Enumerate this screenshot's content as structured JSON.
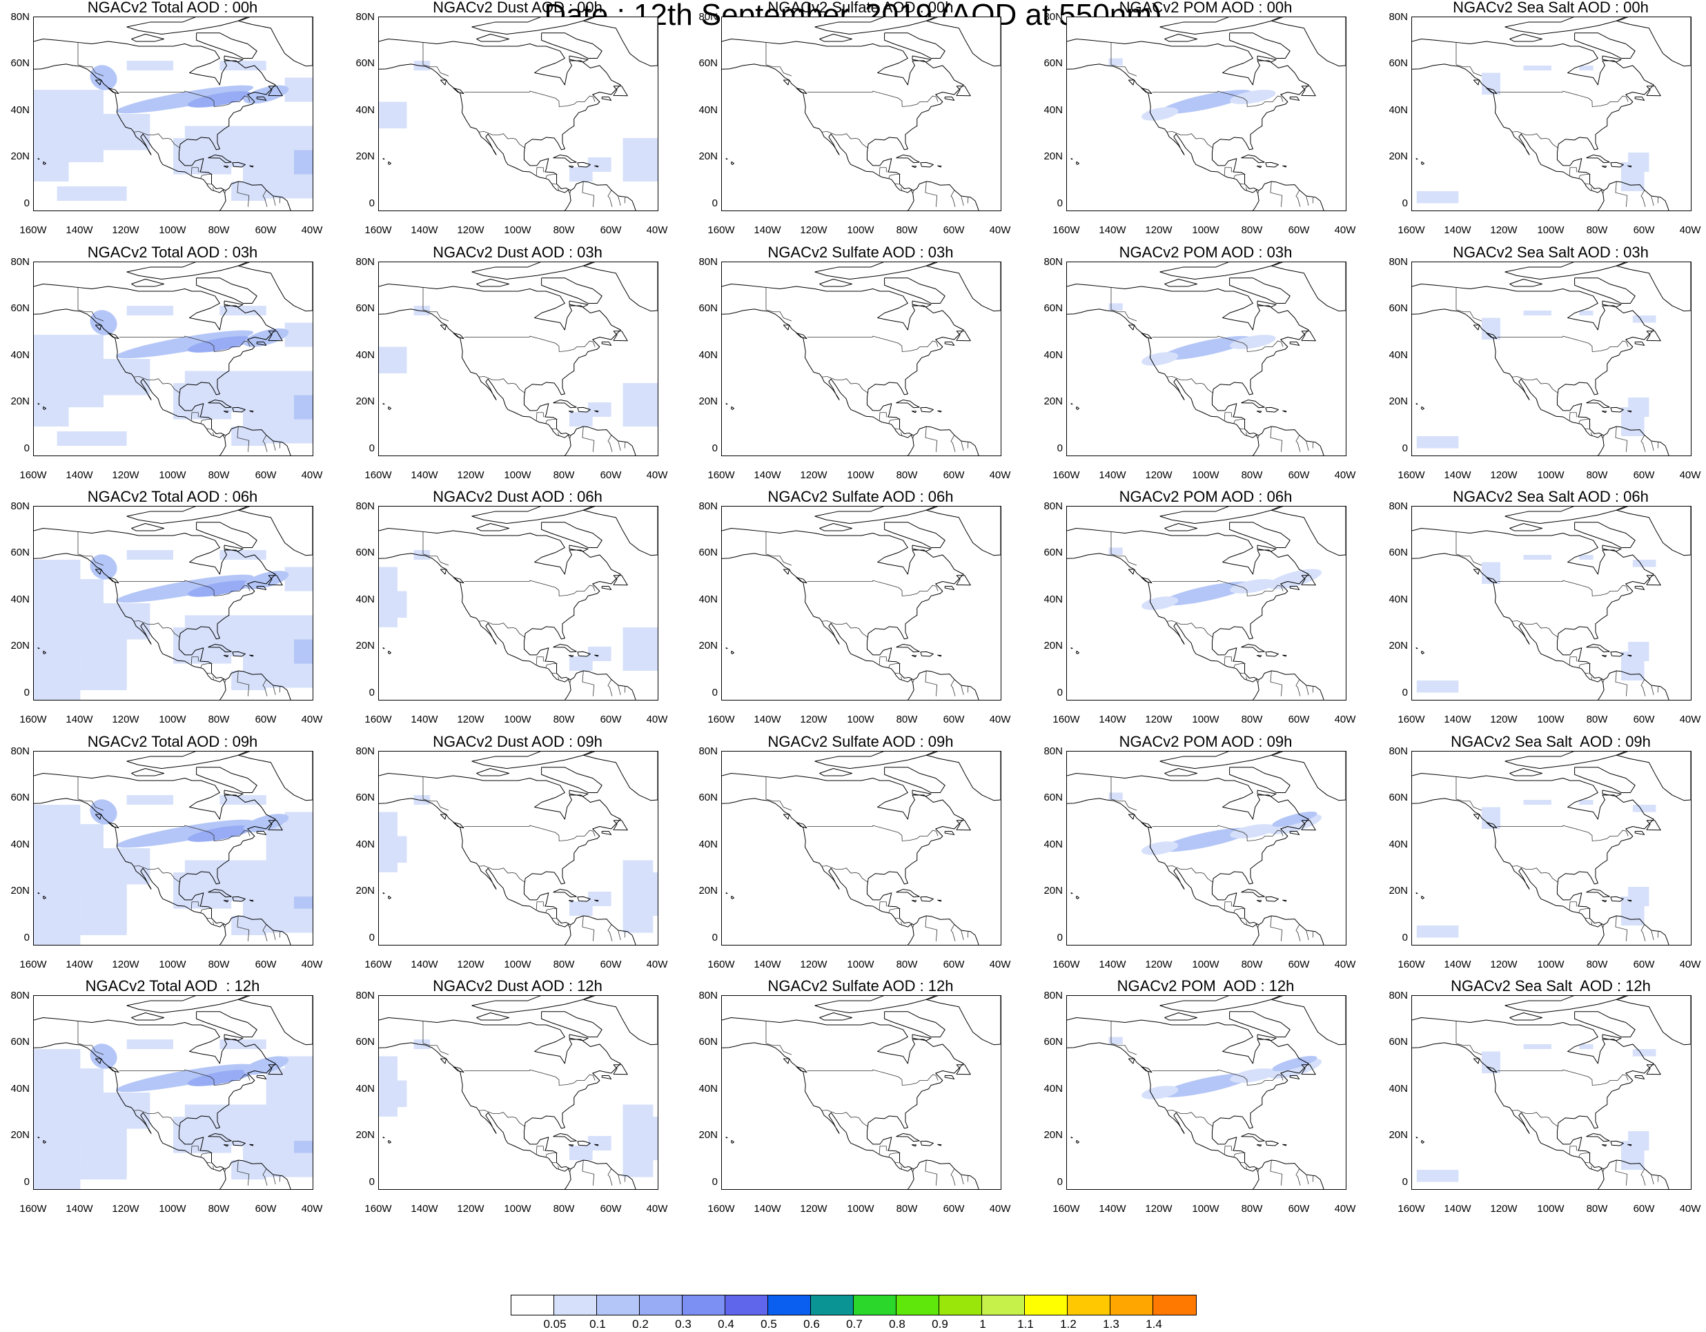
{
  "title": "Date : 12th September, 2019 (AOD at 550nm)",
  "lat_labels": [
    "80N",
    "60N",
    "40N",
    "20N",
    "0"
  ],
  "lon_labels": [
    "160W",
    "140W",
    "120W",
    "100W",
    "80W",
    "60W",
    "40W"
  ],
  "rows": [
    {
      "hour": "00h",
      "titles": [
        "NGACv2 Total AOD : 00h",
        "NGACv2 Dust AOD : 00h",
        "NGACv2 Sulfate AOD : 00h",
        "NGACv2 POM AOD : 00h",
        "NGACv2 Sea Salt AOD : 00h"
      ]
    },
    {
      "hour": "03h",
      "titles": [
        "NGACv2 Total AOD : 03h",
        "NGACv2 Dust AOD : 03h",
        "NGACv2 Sulfate AOD : 03h",
        "NGACv2 POM AOD : 03h",
        "NGACv2 Sea Salt AOD : 03h"
      ]
    },
    {
      "hour": "06h",
      "titles": [
        "NGACv2 Total AOD : 06h",
        "NGACv2 Dust AOD : 06h",
        "NGACv2 Sulfate AOD : 06h",
        "NGACv2 POM AOD : 06h",
        "NGACv2 Sea Salt AOD : 06h"
      ]
    },
    {
      "hour": "09h",
      "titles": [
        "NGACv2 Total AOD : 09h",
        "NGACv2 Dust AOD : 09h",
        "NGACv2 Sulfate AOD : 09h",
        "NGACv2 POM AOD : 09h",
        "NGACv2 Sea Salt  AOD : 09h"
      ]
    },
    {
      "hour": "12h",
      "titles": [
        "NGACv2 Total AOD  : 12h",
        "NGACv2 Dust AOD : 12h",
        "NGACv2 Sulfate AOD : 12h",
        "NGACv2 POM  AOD : 12h",
        "NGACv2 Sea Salt  AOD : 12h"
      ]
    }
  ],
  "colorbar": {
    "colors": [
      "#ffffff",
      "#d6e0fa",
      "#b4c6f7",
      "#97acf5",
      "#7c8ff2",
      "#5f66ec",
      "#0a5ef0",
      "#0a9494",
      "#2bd72b",
      "#5fe60a",
      "#9ae60a",
      "#c6f04a",
      "#ffff00",
      "#ffc800",
      "#ffa600",
      "#ff7800",
      "#ff2a14"
    ],
    "labels": [
      "0.05",
      "0.1",
      "0.2",
      "0.3",
      "0.4",
      "0.5",
      "0.6",
      "0.7",
      "0.8",
      "0.9",
      "1",
      "1.1",
      "1.2",
      "1.3",
      "1.4"
    ]
  }
}
